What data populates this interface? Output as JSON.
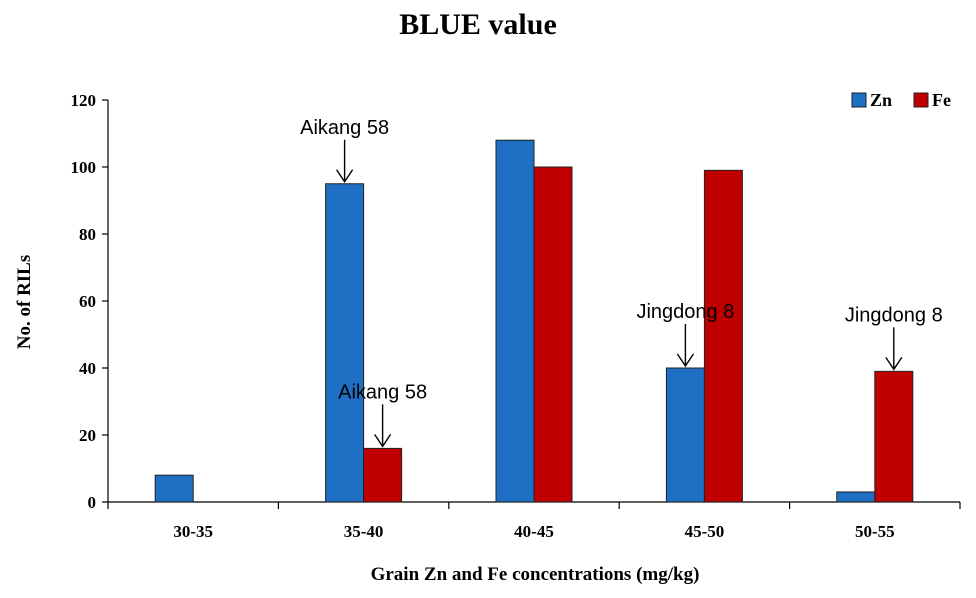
{
  "chart_data": {
    "type": "bar",
    "title": "BLUE value",
    "xlabel": "Grain Zn and Fe concentrations (mg/kg)",
    "ylabel": "No. of RILs",
    "ylim": [
      0,
      120
    ],
    "yticks": [
      0,
      20,
      40,
      60,
      80,
      100,
      120
    ],
    "categories": [
      "30-35",
      "35-40",
      "40-45",
      "45-50",
      "50-55"
    ],
    "series": [
      {
        "name": "Zn",
        "color": "#1f6fc5",
        "values": [
          8,
          95,
          108,
          40,
          3
        ]
      },
      {
        "name": "Fe",
        "color": "#c00000",
        "values": [
          0,
          16,
          100,
          99,
          39
        ]
      }
    ],
    "legend": "top-right",
    "grid": false,
    "annotations": [
      {
        "text": "Aikang 58",
        "category": "35-40",
        "series": "Zn"
      },
      {
        "text": "Aikang 58",
        "category": "35-40",
        "series": "Fe"
      },
      {
        "text": "Jingdong 8",
        "category": "45-50",
        "series": "Zn"
      },
      {
        "text": "Jingdong 8",
        "category": "50-55",
        "series": "Fe"
      }
    ]
  }
}
